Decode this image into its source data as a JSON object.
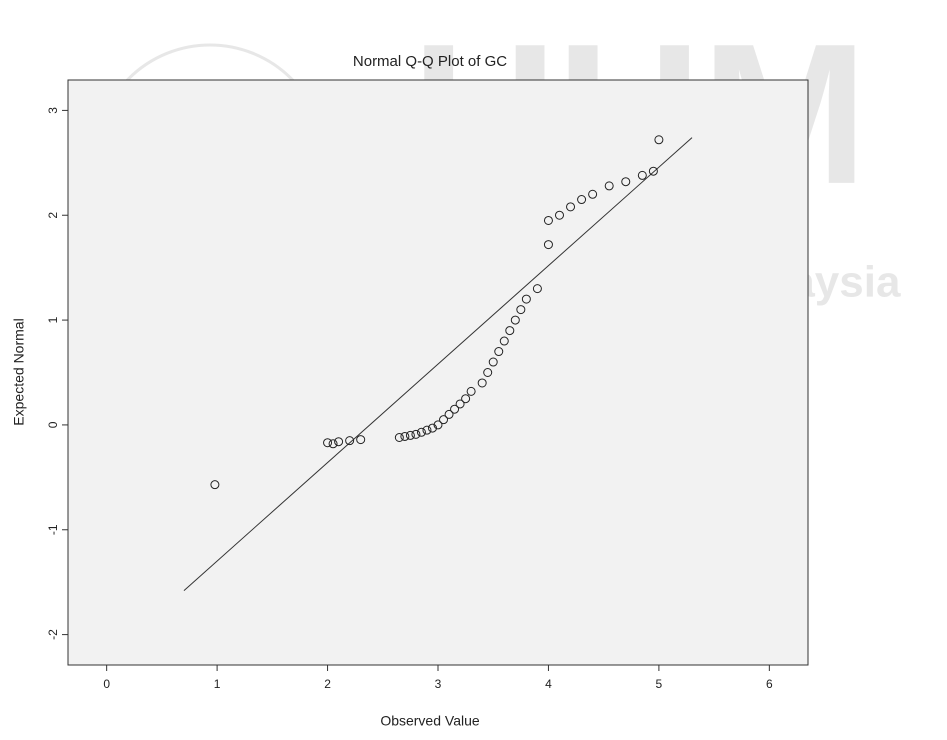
{
  "chart_data": {
    "type": "scatter",
    "title": "Normal Q-Q Plot of GC",
    "x_label": "Observed Value",
    "y_label": "Expected Normal",
    "x": [
      0.98,
      2.0,
      2.05,
      2.1,
      2.2,
      2.3,
      2.65,
      2.7,
      2.75,
      2.8,
      2.85,
      2.9,
      2.95,
      3.0,
      3.05,
      3.1,
      3.15,
      3.2,
      3.25,
      3.3,
      3.4,
      3.45,
      3.5,
      3.55,
      3.6,
      3.65,
      3.7,
      3.75,
      3.8,
      3.9,
      4.0,
      4.0,
      4.1,
      4.2,
      4.3,
      4.4,
      4.55,
      4.7,
      4.85,
      4.95,
      5.0
    ],
    "values": [
      -0.57,
      -0.17,
      -0.18,
      -0.16,
      -0.15,
      -0.14,
      -0.12,
      -0.11,
      -0.1,
      -0.09,
      -0.07,
      -0.05,
      -0.03,
      0.0,
      0.05,
      0.1,
      0.15,
      0.2,
      0.25,
      0.32,
      0.4,
      0.5,
      0.6,
      0.7,
      0.8,
      0.9,
      1.0,
      1.1,
      1.2,
      1.3,
      1.72,
      1.95,
      2.0,
      2.08,
      2.15,
      2.2,
      2.28,
      2.32,
      2.38,
      2.42,
      2.72
    ],
    "color": "#222222",
    "reference_line": {
      "x": [
        0.7,
        5.3
      ],
      "y": [
        -1.58,
        2.74
      ]
    },
    "xlim": [
      -0.35,
      6.35
    ],
    "xticks": [
      0,
      1,
      2,
      3,
      4,
      5,
      6
    ],
    "ylim": [
      -2.29,
      3.29
    ],
    "yticks": [
      -2,
      -1,
      0,
      1,
      2,
      3
    ],
    "background": "#f2f2f2"
  },
  "watermark": {
    "logo": "UUM",
    "text": "Universiti Utara Malaysia"
  }
}
